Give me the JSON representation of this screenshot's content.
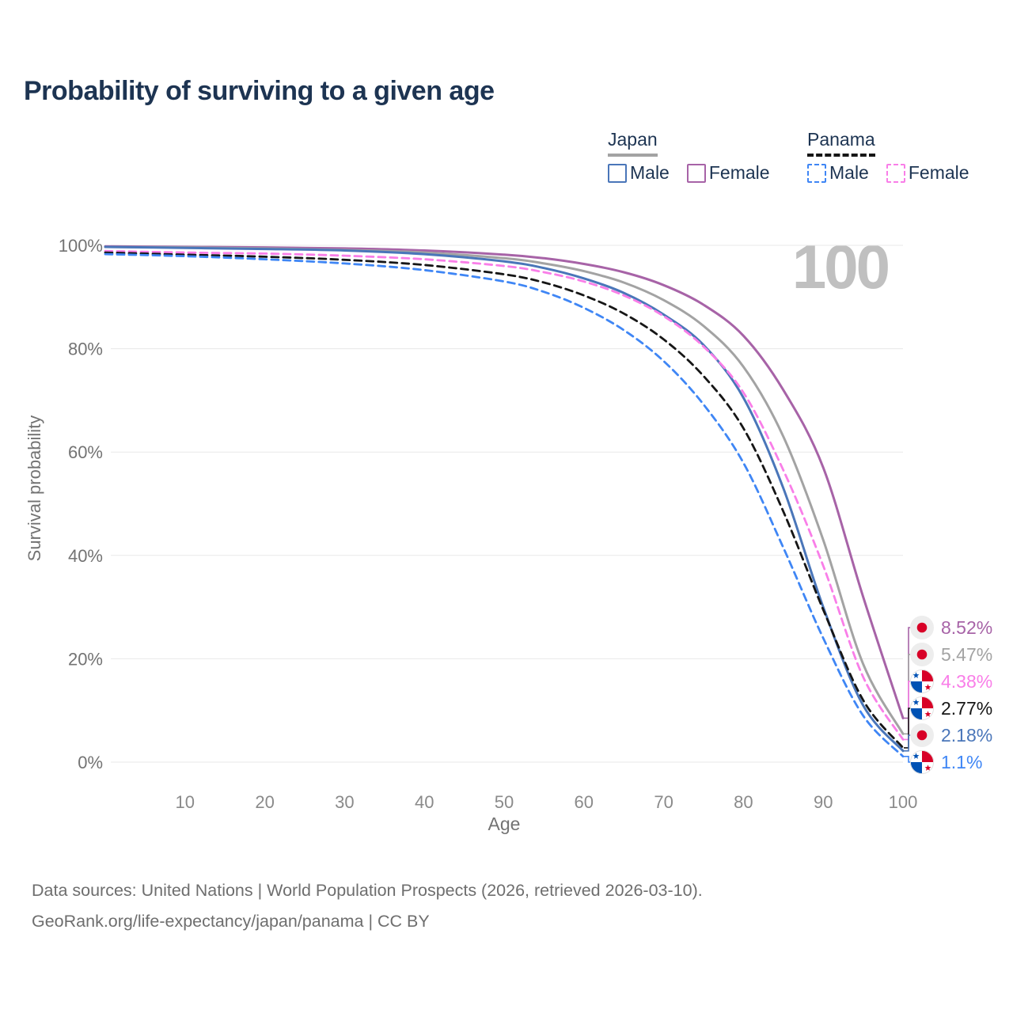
{
  "title": "Probability of surviving to a given age",
  "legend": {
    "japan": {
      "label": "Japan",
      "male": "Male",
      "female": "Female"
    },
    "panama": {
      "label": "Panama",
      "male": "Male",
      "female": "Female"
    }
  },
  "axes": {
    "x_label": "Age",
    "y_label": "Survival probability"
  },
  "watermark": "100",
  "chart_data": {
    "type": "line",
    "title": "Probability of surviving to a given age",
    "xlabel": "Age",
    "ylabel": "Survival probability",
    "xlim": [
      0,
      100
    ],
    "ylim": [
      0,
      100
    ],
    "grid": "horizontal",
    "x_ticks": [
      10,
      20,
      30,
      40,
      50,
      60,
      70,
      80,
      90,
      100
    ],
    "y_ticks": [
      {
        "value": 0,
        "label": "0%"
      },
      {
        "value": 20,
        "label": "20%"
      },
      {
        "value": 40,
        "label": "40%"
      },
      {
        "value": 60,
        "label": "60%"
      },
      {
        "value": 80,
        "label": "80%"
      },
      {
        "value": 100,
        "label": "100%"
      }
    ],
    "ages": [
      0,
      10,
      20,
      30,
      40,
      50,
      55,
      60,
      65,
      70,
      75,
      80,
      85,
      90,
      95,
      100
    ],
    "series": [
      {
        "name": "Japan Female",
        "country": "Japan",
        "sex": "Female",
        "style": "solid",
        "color": "#a763a7",
        "end_label": "8.52%",
        "values": [
          99.8,
          99.7,
          99.6,
          99.4,
          99.0,
          98.2,
          97.5,
          96.4,
          94.8,
          92.3,
          88.5,
          82.5,
          72.0,
          57.0,
          32.0,
          8.52
        ]
      },
      {
        "name": "Japan",
        "country": "Japan",
        "sex": "Both",
        "style": "solid",
        "color": "#a3a3a3",
        "end_label": "5.47%",
        "values": [
          99.7,
          99.6,
          99.4,
          99.1,
          98.6,
          97.5,
          96.5,
          95.0,
          92.8,
          89.4,
          84.4,
          76.5,
          63.0,
          43.0,
          19.0,
          5.47
        ]
      },
      {
        "name": "Japan Male",
        "country": "Japan",
        "sex": "Male",
        "style": "solid",
        "color": "#4a76b9",
        "end_label": "2.18%",
        "values": [
          99.7,
          99.5,
          99.3,
          99.0,
          98.3,
          96.9,
          95.6,
          93.6,
          90.8,
          86.6,
          80.7,
          70.5,
          53.0,
          30.0,
          11.0,
          2.18
        ]
      },
      {
        "name": "Panama Female",
        "country": "Panama",
        "sex": "Female",
        "style": "dashed",
        "color": "#f97ee8",
        "end_label": "4.38%",
        "values": [
          98.9,
          98.6,
          98.4,
          98.0,
          97.3,
          96.0,
          94.8,
          93.0,
          90.3,
          86.3,
          80.4,
          71.5,
          56.5,
          38.0,
          16.5,
          4.38
        ]
      },
      {
        "name": "Panama",
        "country": "Panama",
        "sex": "Both",
        "style": "dashed",
        "color": "#161616",
        "end_label": "2.77%",
        "values": [
          98.6,
          98.2,
          97.8,
          97.2,
          96.2,
          94.4,
          92.8,
          90.3,
          86.8,
          81.8,
          74.7,
          64.6,
          48.5,
          29.5,
          12.0,
          2.77
        ]
      },
      {
        "name": "Panama Male",
        "country": "Panama",
        "sex": "Male",
        "style": "dashed",
        "color": "#3f86f5",
        "end_label": "1.1%",
        "values": [
          98.3,
          97.9,
          97.3,
          96.5,
          95.2,
          93.0,
          91.0,
          87.9,
          83.6,
          77.6,
          69.2,
          57.9,
          41.5,
          24.0,
          9.0,
          1.1
        ]
      }
    ]
  },
  "end_labels": [
    {
      "text": "8.52%",
      "value": 8.52,
      "color": "#a763a7",
      "flag": "japan",
      "series": "Japan Female"
    },
    {
      "text": "5.47%",
      "value": 5.47,
      "color": "#a3a3a3",
      "flag": "japan",
      "series": "Japan"
    },
    {
      "text": "4.38%",
      "value": 4.38,
      "color": "#f97ee8",
      "flag": "panama",
      "series": "Panama Female"
    },
    {
      "text": "2.77%",
      "value": 2.77,
      "color": "#161616",
      "flag": "panama",
      "series": "Panama"
    },
    {
      "text": "2.18%",
      "value": 2.18,
      "color": "#4a76b9",
      "flag": "japan",
      "series": "Japan Male"
    },
    {
      "text": "1.1%",
      "value": 1.1,
      "color": "#3f86f5",
      "flag": "panama",
      "series": "Panama Male"
    }
  ],
  "footer": {
    "line1": "Data sources: United Nations | World Population Prospects (2026, retrieved 2026-03-10).",
    "line2": "GeoRank.org/life-expectancy/japan/panama | CC BY"
  }
}
